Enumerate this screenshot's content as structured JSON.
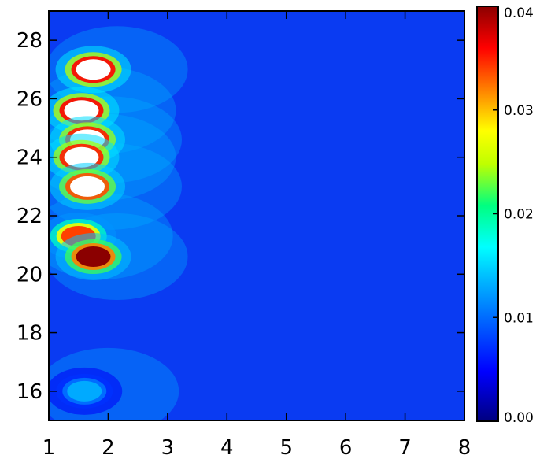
{
  "chart_data": {
    "type": "heatmap",
    "title": "",
    "xlabel": "",
    "ylabel": "",
    "xlim": [
      1,
      8
    ],
    "ylim": [
      15,
      29
    ],
    "x_ticks": [
      "1",
      "2",
      "3",
      "4",
      "5",
      "6",
      "7",
      "8"
    ],
    "y_ticks": [
      "16",
      "18",
      "20",
      "22",
      "24",
      "26",
      "28"
    ],
    "colorbar": {
      "range": [
        0.0,
        0.04
      ],
      "ticks": [
        "0.00",
        "0.01",
        "0.02",
        "0.03",
        "0.04"
      ],
      "colormap": "rainbow"
    },
    "hotspots": [
      {
        "x": 1.75,
        "y": 27.0,
        "value": 0.045
      },
      {
        "x": 1.55,
        "y": 25.6,
        "value": 0.045
      },
      {
        "x": 1.65,
        "y": 24.6,
        "value": 0.044
      },
      {
        "x": 1.55,
        "y": 24.0,
        "value": 0.044
      },
      {
        "x": 1.65,
        "y": 23.0,
        "value": 0.042
      },
      {
        "x": 1.5,
        "y": 21.3,
        "value": 0.034
      },
      {
        "x": 1.75,
        "y": 20.6,
        "value": 0.04
      },
      {
        "x": 1.6,
        "y": 16.0,
        "value": 0.013
      }
    ]
  }
}
